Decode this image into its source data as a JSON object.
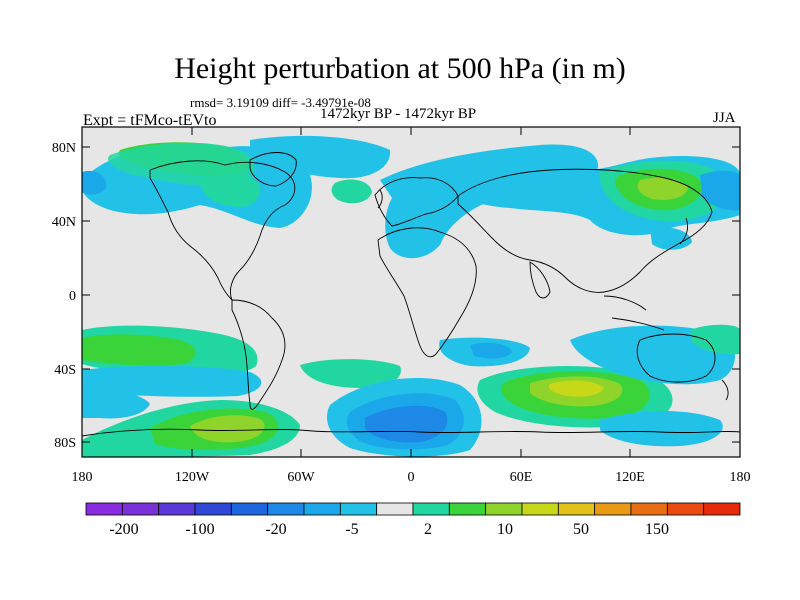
{
  "title": "Height perturbation at 500 hPa (in m)",
  "stats": "rmsd= 3.19109 diff= -3.49791e-08",
  "period": "1472kyr BP - 1472kyr BP",
  "experiment": "Expt = tFMco-tEVto",
  "season": "JJA",
  "lat_ticks": [
    "80N",
    "40N",
    "0",
    "40S",
    "80S"
  ],
  "lon_ticks": [
    "180",
    "120W",
    "60W",
    "0",
    "60E",
    "120E",
    "180"
  ],
  "colorbar": {
    "labels": [
      "-200",
      "-100",
      "-20",
      "-5",
      "2",
      "10",
      "50",
      "150"
    ],
    "colors": [
      "#8a2be2",
      "#7a32d8",
      "#5a3ad6",
      "#3048d8",
      "#1e66de",
      "#1e88e6",
      "#1aa8ea",
      "#22c2e8",
      "#e6e6e6",
      "#22d6a2",
      "#3ad43a",
      "#8ed42a",
      "#c6d818",
      "#e2c21a",
      "#e89a14",
      "#e86e14",
      "#e84a10",
      "#e82a0c"
    ]
  },
  "map_colors": {
    "ocean_land_neutral": "#e6e6e6",
    "cyan": "#22c2e8",
    "light_blue": "#1aa8ea",
    "blue": "#1e88e6",
    "dark_blue": "#1e66de",
    "teal": "#22d6a2",
    "green": "#3ad43a",
    "yellow_green": "#8ed42a",
    "yellow": "#c6d818"
  }
}
